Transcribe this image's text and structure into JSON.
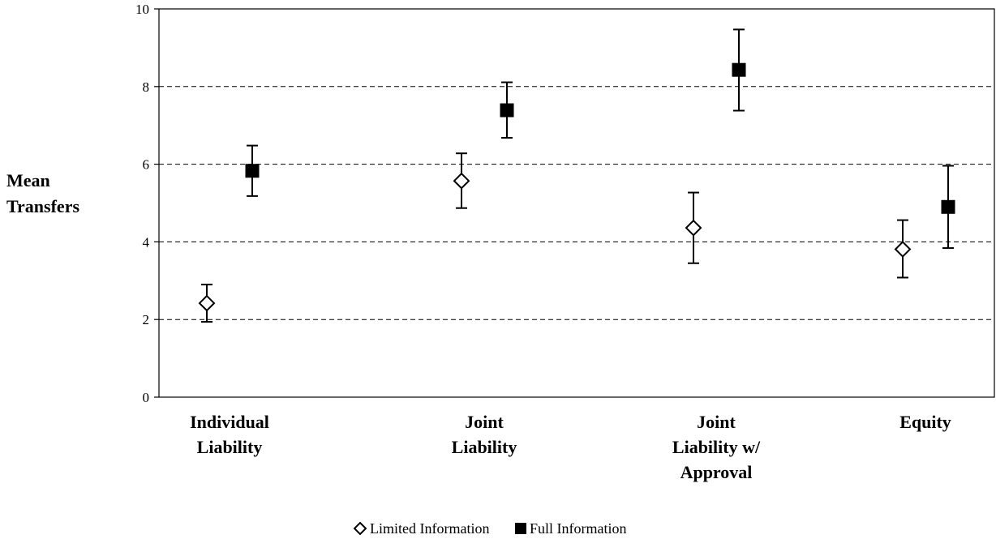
{
  "chart_data": {
    "type": "scatter",
    "ylabel_lines": [
      "Mean",
      "Transfers"
    ],
    "xlabel": "",
    "ylim": [
      0,
      10
    ],
    "yticks": [
      0,
      2,
      4,
      6,
      8,
      10
    ],
    "grid": "horizontal-dashed",
    "legend_position": "bottom-center",
    "categories": [
      [
        "Individual",
        "Liability"
      ],
      [
        "Joint",
        "Liability"
      ],
      [
        "Joint",
        "Liability w/",
        "Approval"
      ],
      [
        "Equity"
      ]
    ],
    "series": [
      {
        "name": "Limited Information",
        "marker": "diamond-open",
        "values": [
          2.42,
          5.57,
          4.36,
          3.81
        ],
        "error_low": [
          1.94,
          4.87,
          3.45,
          3.08
        ],
        "error_high": [
          2.9,
          6.28,
          5.27,
          4.56
        ]
      },
      {
        "name": "Full Information",
        "marker": "square-filled",
        "values": [
          5.83,
          7.39,
          8.43,
          4.9
        ],
        "error_low": [
          5.18,
          6.68,
          7.38,
          3.84
        ],
        "error_high": [
          6.48,
          8.11,
          9.47,
          5.96
        ]
      }
    ]
  }
}
